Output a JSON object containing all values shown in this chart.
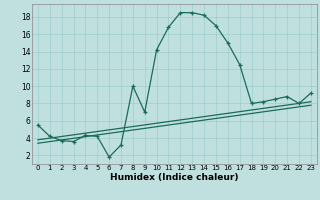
{
  "xlabel": "Humidex (Indice chaleur)",
  "background_color": "#c0e0e0",
  "line_color": "#1a6b5a",
  "grid_color": "#a0cccc",
  "xlim": [
    -0.5,
    23.5
  ],
  "ylim": [
    1.0,
    19.5
  ],
  "xticks": [
    0,
    1,
    2,
    3,
    4,
    5,
    6,
    7,
    8,
    9,
    10,
    11,
    12,
    13,
    14,
    15,
    16,
    17,
    18,
    19,
    20,
    21,
    22,
    23
  ],
  "yticks": [
    2,
    4,
    6,
    8,
    10,
    12,
    14,
    16,
    18
  ],
  "main_x": [
    0,
    1,
    2,
    3,
    4,
    5,
    6,
    7,
    8,
    9,
    10,
    11,
    12,
    13,
    14,
    15,
    16,
    17,
    18,
    19,
    20,
    21,
    22,
    23
  ],
  "main_y": [
    5.5,
    4.2,
    3.7,
    3.6,
    4.3,
    4.2,
    1.8,
    3.2,
    10.0,
    7.0,
    14.2,
    16.8,
    18.5,
    18.5,
    18.2,
    17.0,
    15.0,
    12.5,
    8.0,
    8.2,
    8.5,
    8.8,
    8.0,
    9.2
  ],
  "line2_x": [
    0,
    23
  ],
  "line2_y": [
    3.8,
    8.2
  ],
  "line3_x": [
    0,
    23
  ],
  "line3_y": [
    3.4,
    7.8
  ],
  "tick_fontsize": 5.0,
  "xlabel_fontsize": 6.5
}
